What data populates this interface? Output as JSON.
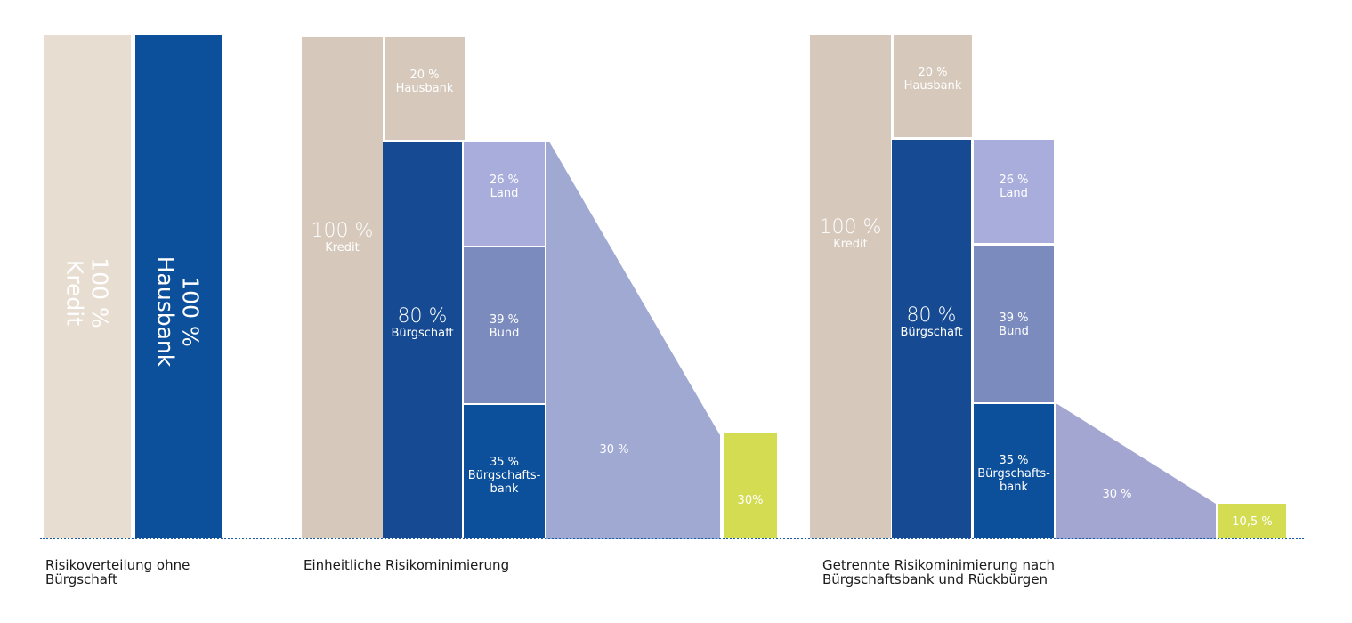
{
  "colors": {
    "beige_light": "#e8ddd1",
    "beige": "#d6c9bc",
    "navy": "#0c4f9a",
    "navy_dark": "#164a92",
    "lavender": "#a9addb",
    "periwinkle": "#7b8bbd",
    "triangle": "#9fa9d2",
    "lime": "#d4dc52",
    "baseline": "#1b5da8"
  },
  "scenario1": {
    "kredit": {
      "pct": "100 %",
      "label": "Kredit"
    },
    "hausbank": {
      "pct": "100 %",
      "label": "Hausbank"
    },
    "caption": [
      "Risikoverteilung ohne",
      "Bürgschaft"
    ]
  },
  "scenario2": {
    "kredit": {
      "pct": "100 %",
      "label": "Kredit"
    },
    "hausbank": {
      "pct": "20 %",
      "label": "Hausbank"
    },
    "buergschaft": {
      "pct": "80 %",
      "label": "Bürgschaft"
    },
    "land": {
      "pct": "26 %",
      "label": "Land"
    },
    "bund": {
      "pct": "39 %",
      "label": "Bund"
    },
    "bbank": {
      "pct": "35 %",
      "label1": "Bürgschafts-",
      "label2": "bank"
    },
    "triangle_label": "30 %",
    "result_label": "30%",
    "caption": [
      "Einheitliche Risikominimierung"
    ]
  },
  "scenario3": {
    "kredit": {
      "pct": "100 %",
      "label": "Kredit"
    },
    "hausbank": {
      "pct": "20 %",
      "label": "Hausbank"
    },
    "buergschaft": {
      "pct": "80 %",
      "label": "Bürgschaft"
    },
    "land": {
      "pct": "26 %",
      "label": "Land"
    },
    "bund": {
      "pct": "39 %",
      "label": "Bund"
    },
    "bbank": {
      "pct": "35 %",
      "label1": "Bürgschafts-",
      "label2": "bank"
    },
    "triangle_label": "30 %",
    "result_label": "10,5 %",
    "caption": [
      "Getrennte Risikominimierung nach",
      "Bürgschaftsbank und Rückbürgen"
    ]
  }
}
